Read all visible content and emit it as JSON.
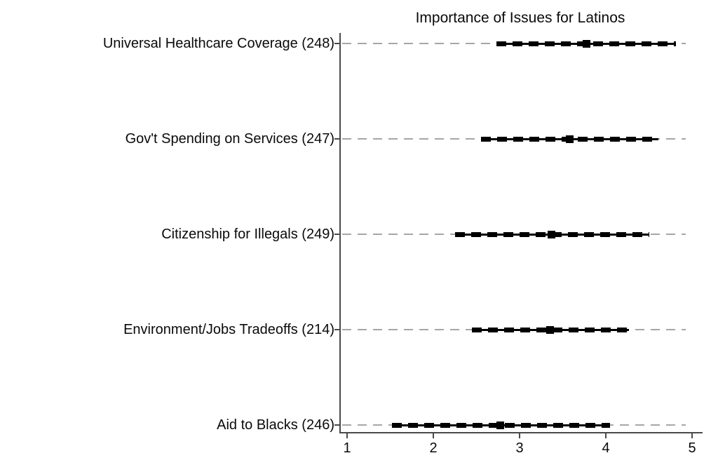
{
  "chart_data": {
    "type": "scatter",
    "subtype": "dot-plot-with-confidence-intervals",
    "title": "Importance of Issues for Latinos",
    "categories": [
      "Universal Healthcare Coverage (248)",
      "Gov't Spending on Services (247)",
      "Citizenship for Illegals (249)",
      "Environment/Jobs Tradeoffs (214)",
      "Aid to Blacks (246)"
    ],
    "estimates": [
      3.78,
      3.58,
      3.37,
      3.35,
      2.78
    ],
    "ci_low": [
      2.73,
      2.55,
      2.25,
      2.45,
      1.52
    ],
    "ci_high": [
      4.81,
      4.61,
      4.5,
      4.27,
      4.05
    ],
    "xlabel": "",
    "ylabel": "",
    "xlim": [
      1,
      5
    ],
    "x_ticks": [
      1,
      2,
      3,
      4,
      5
    ],
    "grid": "dashed-horizontal",
    "legend": "none",
    "marker": "filled-square",
    "colors": {
      "marker": "#000000",
      "ci_line": "#000000",
      "gridline": "#a6a6a6",
      "axis": "#4a4a4a",
      "text": "#0a0a0a",
      "background": "#ffffff"
    }
  }
}
